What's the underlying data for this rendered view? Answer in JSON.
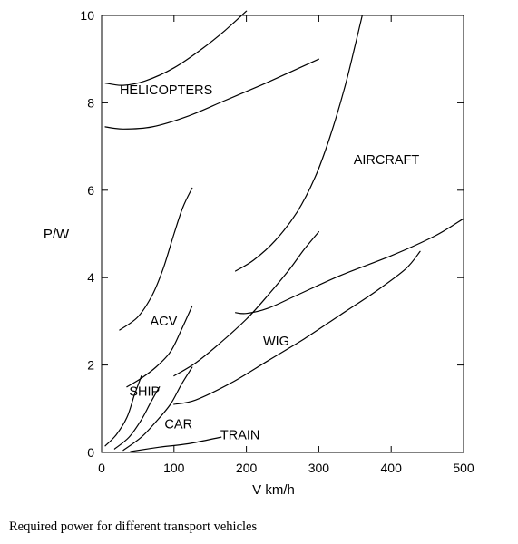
{
  "caption": "Required power for different transport vehicles",
  "chart_data": {
    "type": "line",
    "xlabel": "V km/h",
    "ylabel": "P/W",
    "xlim": [
      0,
      500
    ],
    "ylim": [
      0,
      10
    ],
    "x_ticks": [
      0,
      100,
      200,
      300,
      400,
      500
    ],
    "y_ticks": [
      0,
      2,
      4,
      6,
      8,
      10
    ],
    "grid": false,
    "legend": "none",
    "labels": [
      {
        "text": "HELICOPTERS",
        "x": 25,
        "y": 8.2
      },
      {
        "text": "AIRCRAFT",
        "x": 348,
        "y": 6.6
      },
      {
        "text": "ACV",
        "x": 67,
        "y": 2.9
      },
      {
        "text": "WIG",
        "x": 223,
        "y": 2.45
      },
      {
        "text": "SHIP",
        "x": 38,
        "y": 1.3
      },
      {
        "text": "CAR",
        "x": 87,
        "y": 0.55
      },
      {
        "text": "TRAIN",
        "x": 164,
        "y": 0.3
      }
    ],
    "series": [
      {
        "values": [
          [
            5,
            8.45
          ],
          [
            30,
            8.4
          ],
          [
            60,
            8.5
          ],
          [
            100,
            8.8
          ],
          [
            140,
            9.25
          ],
          [
            170,
            9.65
          ],
          [
            200,
            10.1
          ]
        ]
      },
      {
        "values": [
          [
            5,
            7.45
          ],
          [
            30,
            7.4
          ],
          [
            70,
            7.45
          ],
          [
            120,
            7.7
          ],
          [
            170,
            8.05
          ],
          [
            220,
            8.4
          ],
          [
            260,
            8.7
          ],
          [
            300,
            9.0
          ]
        ]
      },
      {
        "values": [
          [
            185,
            4.15
          ],
          [
            210,
            4.4
          ],
          [
            240,
            4.85
          ],
          [
            270,
            5.5
          ],
          [
            295,
            6.3
          ],
          [
            315,
            7.2
          ],
          [
            335,
            8.3
          ],
          [
            350,
            9.3
          ],
          [
            360,
            10.0
          ]
        ]
      },
      {
        "values": [
          [
            185,
            3.2
          ],
          [
            200,
            3.18
          ],
          [
            230,
            3.3
          ],
          [
            270,
            3.6
          ],
          [
            330,
            4.05
          ],
          [
            400,
            4.5
          ],
          [
            460,
            4.95
          ],
          [
            500,
            5.35
          ]
        ]
      },
      {
        "values": [
          [
            100,
            1.1
          ],
          [
            130,
            1.2
          ],
          [
            180,
            1.6
          ],
          [
            230,
            2.1
          ],
          [
            280,
            2.6
          ],
          [
            330,
            3.15
          ],
          [
            380,
            3.7
          ],
          [
            420,
            4.2
          ],
          [
            440,
            4.6
          ]
        ]
      },
      {
        "values": [
          [
            100,
            1.75
          ],
          [
            130,
            2.05
          ],
          [
            160,
            2.45
          ],
          [
            200,
            3.05
          ],
          [
            230,
            3.6
          ],
          [
            260,
            4.2
          ],
          [
            280,
            4.65
          ],
          [
            300,
            5.05
          ]
        ]
      },
      {
        "values": [
          [
            25,
            2.8
          ],
          [
            50,
            3.1
          ],
          [
            70,
            3.6
          ],
          [
            85,
            4.2
          ],
          [
            100,
            5.0
          ],
          [
            112,
            5.6
          ],
          [
            125,
            6.05
          ]
        ]
      },
      {
        "values": [
          [
            35,
            1.5
          ],
          [
            55,
            1.7
          ],
          [
            75,
            1.95
          ],
          [
            95,
            2.3
          ],
          [
            110,
            2.8
          ],
          [
            125,
            3.35
          ]
        ]
      },
      {
        "values": [
          [
            5,
            0.15
          ],
          [
            20,
            0.4
          ],
          [
            35,
            0.8
          ],
          [
            45,
            1.3
          ],
          [
            55,
            1.75
          ]
        ]
      },
      {
        "values": [
          [
            18,
            0.08
          ],
          [
            38,
            0.35
          ],
          [
            55,
            0.75
          ],
          [
            68,
            1.15
          ],
          [
            80,
            1.5
          ]
        ]
      },
      {
        "values": [
          [
            30,
            0.05
          ],
          [
            55,
            0.35
          ],
          [
            75,
            0.7
          ],
          [
            95,
            1.1
          ],
          [
            110,
            1.55
          ],
          [
            125,
            1.95
          ]
        ]
      },
      {
        "values": [
          [
            40,
            0.02
          ],
          [
            80,
            0.12
          ],
          [
            120,
            0.2
          ],
          [
            165,
            0.35
          ]
        ]
      }
    ]
  }
}
